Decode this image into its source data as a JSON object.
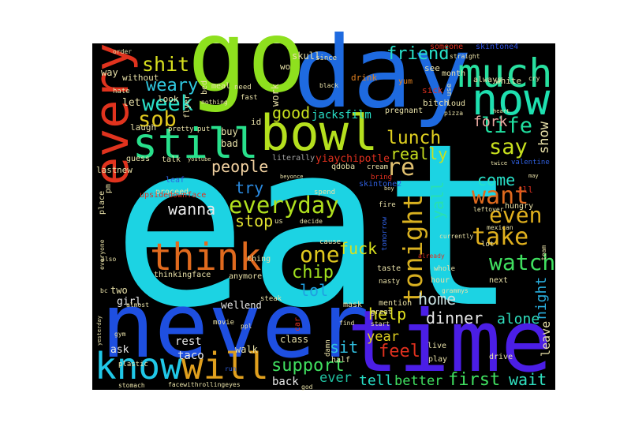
{
  "chart_data": {
    "type": "wordcloud",
    "background": "#000000",
    "words": [
      {
        "text": "eat",
        "color": "#1cd3e3"
      },
      {
        "text": "never",
        "color": "#1e4fe0"
      },
      {
        "text": "time",
        "color": "#4b1ee6"
      },
      {
        "text": "go",
        "color": "#8ee01e"
      },
      {
        "text": "day",
        "color": "#1e6ae0"
      },
      {
        "text": "bowl",
        "color": "#b5e01e"
      },
      {
        "text": "still",
        "color": "#28e08c"
      },
      {
        "text": "every",
        "color": "#e0331e"
      },
      {
        "text": "much",
        "color": "#28e0a0"
      },
      {
        "text": "now",
        "color": "#1ee0b0"
      },
      {
        "text": "think",
        "color": "#e06a1e"
      },
      {
        "text": "know",
        "color": "#20c8e8"
      },
      {
        "text": "will",
        "color": "#e0a01e"
      },
      {
        "text": "tonight",
        "color": "#d8b020"
      },
      {
        "text": "everyday",
        "color": "#b0e01e"
      },
      {
        "text": "week",
        "color": "#2ae0c8"
      },
      {
        "text": "sob",
        "color": "#e0c81e"
      },
      {
        "text": "shit",
        "color": "#d8e01e"
      },
      {
        "text": "weary",
        "color": "#30c8e0"
      },
      {
        "text": "life",
        "color": "#20e0a0"
      },
      {
        "text": "say",
        "color": "#c8e01e"
      },
      {
        "text": "show",
        "color": "#e8e0a8"
      },
      {
        "text": "lunch",
        "color": "#e0d020"
      },
      {
        "text": "re",
        "color": "#e0c070"
      },
      {
        "text": "really",
        "color": "#c8e01e"
      },
      {
        "text": "come",
        "color": "#28e0c8"
      },
      {
        "text": "fork",
        "color": "#e8a8a0"
      },
      {
        "text": "friend",
        "color": "#28e0c8"
      },
      {
        "text": "want",
        "color": "#e06a1e"
      },
      {
        "text": "even",
        "color": "#e0b01e"
      },
      {
        "text": "take",
        "color": "#e0b01e"
      },
      {
        "text": "watch",
        "color": "#40e060"
      },
      {
        "text": "night",
        "color": "#2ab0e0"
      },
      {
        "text": "leave",
        "color": "#e8e0a8"
      },
      {
        "text": "alone",
        "color": "#30e0c0"
      },
      {
        "text": "dinner",
        "color": "#e8e8e8"
      },
      {
        "text": "home",
        "color": "#c8e0e0"
      },
      {
        "text": "help",
        "color": "#e0e01e"
      },
      {
        "text": "year",
        "color": "#e0d020"
      },
      {
        "text": "feel",
        "color": "#e0301e"
      },
      {
        "text": "sit",
        "color": "#30c0e0"
      },
      {
        "text": "ever",
        "color": "#20c0a0"
      },
      {
        "text": "tell",
        "color": "#28e0c8"
      },
      {
        "text": "better",
        "color": "#40e060"
      },
      {
        "text": "first",
        "color": "#40e060"
      },
      {
        "text": "wait",
        "color": "#30e0c0"
      },
      {
        "text": "support",
        "color": "#40e060"
      },
      {
        "text": "one",
        "color": "#e0c81e"
      },
      {
        "text": "chip",
        "color": "#a0e01e"
      },
      {
        "text": "lol",
        "color": "#20a0e0"
      },
      {
        "text": "fuck",
        "color": "#d8e01e"
      },
      {
        "text": "yall",
        "color": "#28e0b0"
      },
      {
        "text": "people",
        "color": "#f0d0a0"
      },
      {
        "text": "try",
        "color": "#2a8ae0"
      },
      {
        "text": "wanna",
        "color": "#e8e8e8"
      },
      {
        "text": "stop",
        "color": "#e0e030"
      },
      {
        "text": "good",
        "color": "#c8e01e"
      },
      {
        "text": "jacksfilm",
        "color": "#28e0c8"
      },
      {
        "text": "yiaychipotle",
        "color": "#e0301e"
      },
      {
        "text": "literally",
        "color": "#a0a0a0"
      },
      {
        "text": "rest",
        "color": "#e8e8e8"
      },
      {
        "text": "taco",
        "color": "#e8e8e8"
      },
      {
        "text": "walk",
        "color": "#e8e0a8"
      },
      {
        "text": "class",
        "color": "#e8e0a8"
      },
      {
        "text": "back",
        "color": "#e8e8e8"
      },
      {
        "text": "ask",
        "color": "#e8e8e8"
      },
      {
        "text": "two",
        "color": "#e8e0a8"
      },
      {
        "text": "girl",
        "color": "#e8e8e8"
      },
      {
        "text": "well",
        "color": "#e8e8e8"
      },
      {
        "text": "end",
        "color": "#e8e8e8"
      },
      {
        "text": "let",
        "color": "#e8e0a8"
      },
      {
        "text": "bad",
        "color": "#e8e0a8"
      },
      {
        "text": "buy",
        "color": "#e8e0a8"
      },
      {
        "text": "laugh",
        "color": "#e8e0a8"
      },
      {
        "text": "way",
        "color": "#e8e0a8"
      },
      {
        "text": "without",
        "color": "#e8e0a8"
      },
      {
        "text": "skull",
        "color": "#e8e0a8"
      },
      {
        "text": "wo",
        "color": "#e8e0a8"
      },
      {
        "text": "work",
        "color": "#e8e0a8"
      },
      {
        "text": "meal",
        "color": "#e8e0a8"
      },
      {
        "text": "someone",
        "color": "#e03020"
      },
      {
        "text": "skintone4",
        "color": "#3050e0"
      },
      {
        "text": "see",
        "color": "#e8e0a8"
      },
      {
        "text": "drink",
        "color": "#e08020"
      },
      {
        "text": "sick",
        "color": "#e03020"
      },
      {
        "text": "bitch",
        "color": "#e8e0a8"
      },
      {
        "text": "pregnant",
        "color": "#e8e0a8"
      },
      {
        "text": "loud",
        "color": "#e8e0a8"
      },
      {
        "text": "always",
        "color": "#e8e0a8"
      },
      {
        "text": "white",
        "color": "#e8e0a8"
      },
      {
        "text": "month",
        "color": "#e8e0a8"
      },
      {
        "text": "yum",
        "color": "#e08020"
      },
      {
        "text": "pizza",
        "color": "#e8e0a8"
      },
      {
        "text": "skintone2",
        "color": "#3060e0"
      },
      {
        "text": "cream",
        "color": "#e8e0a8"
      },
      {
        "text": "bring",
        "color": "#e03020"
      },
      {
        "text": "spend",
        "color": "#e8e0a8"
      },
      {
        "text": "fire",
        "color": "#e8e0a8"
      },
      {
        "text": "hungry",
        "color": "#e8e0a8"
      },
      {
        "text": "leftover",
        "color": "#e8e0a8"
      },
      {
        "text": "ill",
        "color": "#e03020"
      },
      {
        "text": "valentine",
        "color": "#3060e0"
      },
      {
        "text": "mexican",
        "color": "#e8e0a8"
      },
      {
        "text": "lot",
        "color": "#e8e0a8"
      },
      {
        "text": "next",
        "color": "#e8e0a8"
      },
      {
        "text": "hour",
        "color": "#e8e0a8"
      },
      {
        "text": "whole",
        "color": "#e8e0a8"
      },
      {
        "text": "taste",
        "color": "#e8e0a8"
      },
      {
        "text": "nasty",
        "color": "#e8e0a8"
      },
      {
        "text": "grammys",
        "color": "#e8e0a8"
      },
      {
        "text": "mention",
        "color": "#e8e0a8"
      },
      {
        "text": "great",
        "color": "#e8e0a8"
      },
      {
        "text": "live",
        "color": "#e8e0a8"
      },
      {
        "text": "play",
        "color": "#e8e0a8"
      },
      {
        "text": "drive",
        "color": "#e8e0a8"
      },
      {
        "text": "half",
        "color": "#e8e0a8"
      },
      {
        "text": "qdoba",
        "color": "#e8e0a8"
      },
      {
        "text": "leaf",
        "color": "#3060e0"
      },
      {
        "text": "proceed",
        "color": "#e8e0a8"
      },
      {
        "text": "upsidedownface",
        "color": "#e03020"
      },
      {
        "text": "last",
        "color": "#e8e0a8"
      },
      {
        "text": "new",
        "color": "#e8e0a8"
      },
      {
        "text": "guess",
        "color": "#e8e0a8"
      },
      {
        "text": "talk",
        "color": "#e8e0a8"
      },
      {
        "text": "youtube",
        "color": "#e8e0a8"
      },
      {
        "text": "place",
        "color": "#e8e0a8"
      },
      {
        "text": "thinkingface",
        "color": "#e8e0a8"
      },
      {
        "text": "thing",
        "color": "#e8e0a8"
      },
      {
        "text": "anymore",
        "color": "#e8e0a8"
      },
      {
        "text": "us",
        "color": "#e8e0a8"
      },
      {
        "text": "cause",
        "color": "#e8e0a8"
      },
      {
        "text": "decide",
        "color": "#e8e0a8"
      },
      {
        "text": "tomorrow",
        "color": "#3060e0"
      },
      {
        "text": "steak",
        "color": "#e8e0a8"
      },
      {
        "text": "movie",
        "color": "#e8e0a8"
      },
      {
        "text": "mask",
        "color": "#e8e0a8"
      },
      {
        "text": "plastic",
        "color": "#e8e0a8"
      },
      {
        "text": "stomach",
        "color": "#e8e0a8"
      },
      {
        "text": "facewithrollingeyes",
        "color": "#e8e0a8"
      },
      {
        "text": "gym",
        "color": "#e8e0a8"
      },
      {
        "text": "yesterday",
        "color": "#e8e0a8"
      },
      {
        "text": "almost",
        "color": "#e8e0a8"
      },
      {
        "text": "everyone",
        "color": "#e8e0a8"
      },
      {
        "text": "look",
        "color": "#e8e0a8"
      },
      {
        "text": "flyer",
        "color": "#e8e0a8"
      },
      {
        "text": "nothing",
        "color": "#e8e0a8"
      },
      {
        "text": "pretty",
        "color": "#e8e0a8"
      },
      {
        "text": "put",
        "color": "#e8e0a8"
      },
      {
        "text": "id",
        "color": "#e8e0a8"
      },
      {
        "text": "need",
        "color": "#e8e0a8"
      },
      {
        "text": "fast",
        "color": "#e8e0a8"
      },
      {
        "text": "hate",
        "color": "#e8e0a8"
      },
      {
        "text": "order",
        "color": "#e8e0a8"
      },
      {
        "text": "since",
        "color": "#e8e0a8"
      },
      {
        "text": "straight",
        "color": "#e8e0a8"
      },
      {
        "text": "cry",
        "color": "#e8e0a8"
      },
      {
        "text": "heart",
        "color": "#e8e0a8"
      },
      {
        "text": "twice",
        "color": "#e8e0a8"
      },
      {
        "text": "may",
        "color": "#e8e0a8"
      },
      {
        "text": "team",
        "color": "#e8e0a8"
      },
      {
        "text": "currently",
        "color": "#e8e0a8"
      },
      {
        "text": "already",
        "color": "#e03020"
      },
      {
        "text": "start",
        "color": "#e8e0a8"
      },
      {
        "text": "find",
        "color": "#e8e0a8"
      },
      {
        "text": "damn",
        "color": "#e8e0a8"
      },
      {
        "text": "car",
        "color": "#e03020"
      },
      {
        "text": "bc",
        "color": "#e8e0a8"
      },
      {
        "text": "also",
        "color": "#e8e0a8"
      },
      {
        "text": "ppl",
        "color": "#e8e0a8"
      },
      {
        "text": "run",
        "color": "#3060e0"
      },
      {
        "text": "god",
        "color": "#e8e0a8"
      },
      {
        "text": "boy",
        "color": "#e8e0a8"
      },
      {
        "text": "black",
        "color": "#e8e0a8"
      },
      {
        "text": "use",
        "color": "#e8e0a8"
      },
      {
        "text": "beyonce",
        "color": "#e8e0a8"
      },
      {
        "text": "pm",
        "color": "#e8e0a8"
      },
      {
        "text": "bed",
        "color": "#e8e0a8"
      }
    ]
  }
}
